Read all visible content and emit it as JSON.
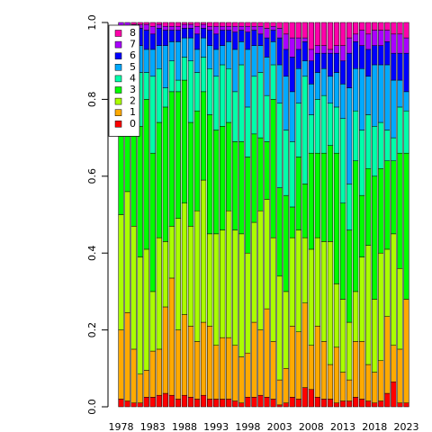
{
  "chart_data": {
    "type": "stacked_bar",
    "categories": [
      "1978",
      null,
      null,
      null,
      null,
      "1983",
      null,
      null,
      null,
      null,
      "1988",
      null,
      null,
      null,
      null,
      "1993",
      null,
      null,
      null,
      null,
      "1998",
      null,
      null,
      null,
      null,
      "2003",
      null,
      null,
      null,
      null,
      "2008",
      null,
      null,
      null,
      null,
      "2013",
      null,
      null,
      null,
      null,
      "2018",
      null,
      null,
      null,
      null,
      "2023"
    ],
    "ylim": [
      0,
      1
    ],
    "yticks": [
      {
        "value": 0,
        "label": "0.0"
      },
      {
        "value": 0.2,
        "label": "0.2"
      },
      {
        "value": 0.4,
        "label": "0.4"
      },
      {
        "value": 0.6,
        "label": "0.6"
      },
      {
        "value": 0.8,
        "label": "0.8"
      },
      {
        "value": 1,
        "label": "1.0"
      }
    ],
    "legend": "top-left",
    "series": [
      {
        "name": "0",
        "color": "#FF0000",
        "values": [
          0.02,
          0.015,
          0.01,
          0.01,
          0.025,
          0.025,
          0.03,
          0.035,
          0.03,
          0.02,
          0.03,
          0.025,
          0.02,
          0.03,
          0.02,
          0.02,
          0.02,
          0.02,
          0.015,
          0.01,
          0.025,
          0.025,
          0.03,
          0.025,
          0.02,
          0.005,
          0.01,
          0.025,
          0.02,
          0.05,
          0.045,
          0.025,
          0.02,
          0.02,
          0.01,
          0.015,
          0.015,
          0.025,
          0.02,
          0.015,
          0.01,
          0.015,
          0.035,
          0.065,
          0.01,
          0.01
        ]
      },
      {
        "name": "1",
        "color": "#FFAA00",
        "values": [
          0.18,
          0.23,
          0.14,
          0.075,
          0.07,
          0.12,
          0.12,
          0.225,
          0.305,
          0.18,
          0.21,
          0.185,
          0.15,
          0.19,
          0.19,
          0.14,
          0.16,
          0.16,
          0.145,
          0.12,
          0.115,
          0.195,
          0.17,
          0.23,
          0.15,
          0.065,
          0.09,
          0.185,
          0.175,
          0.22,
          0.115,
          0.185,
          0.15,
          0.09,
          0.145,
          0.075,
          0.055,
          0.145,
          0.15,
          0.095,
          0.08,
          0.105,
          0.2,
          0.095,
          0.14,
          0.27
        ]
      },
      {
        "name": "2",
        "color": "#AAFF00",
        "values": [
          0.3,
          0.315,
          0.32,
          0.305,
          0.315,
          0.155,
          0.29,
          0.17,
          0.135,
          0.29,
          0.29,
          0.26,
          0.34,
          0.37,
          0.24,
          0.29,
          0.28,
          0.33,
          0.3,
          0.32,
          0.26,
          0.26,
          0.31,
          0.285,
          0.27,
          0.27,
          0.2,
          0.23,
          0.265,
          0.17,
          0.25,
          0.23,
          0.26,
          0.32,
          0.165,
          0.19,
          0.15,
          0.13,
          0.22,
          0.31,
          0.19,
          0.28,
          0.175,
          0.29,
          0.21,
          0
        ]
      },
      {
        "name": "3",
        "color": "#00FF00",
        "values": [
          0.24,
          0.2,
          0.27,
          0.34,
          0.39,
          0.36,
          0.3,
          0.35,
          0.35,
          0.33,
          0.32,
          0.27,
          0.26,
          0.23,
          0.31,
          0.27,
          0.27,
          0.23,
          0.23,
          0.24,
          0.25,
          0.23,
          0.19,
          0.15,
          0.36,
          0.23,
          0.25,
          0.08,
          0.19,
          0.14,
          0.25,
          0.22,
          0.23,
          0.25,
          0.34,
          0.25,
          0.24,
          0.34,
          0.16,
          0.2,
          0.32,
          0.22,
          0.23,
          0.19,
          0.3,
          0.38
        ]
      },
      {
        "name": "4",
        "color": "#00FFAA",
        "values": [
          0.12,
          0.11,
          0.12,
          0.14,
          0.07,
          0.2,
          0.14,
          0.05,
          0.08,
          0.03,
          0.06,
          0.16,
          0.1,
          0.09,
          0.12,
          0.14,
          0.16,
          0.14,
          0.13,
          0.2,
          0.13,
          0.15,
          0.17,
          0.12,
          0.09,
          0.22,
          0.17,
          0.17,
          0.14,
          0.28,
          0.1,
          0.14,
          0.15,
          0.11,
          0.12,
          0.22,
          0.12,
          0.13,
          0.17,
          0.14,
          0.13,
          0.12,
          0.08,
          0.06,
          0.12,
          0.11
        ]
      },
      {
        "name": "5",
        "color": "#00AAFF",
        "values": [
          0.09,
          0.08,
          0.07,
          0.07,
          0.06,
          0.07,
          0.06,
          0.11,
          0.05,
          0.1,
          0.05,
          0.06,
          0.06,
          0.05,
          0.06,
          0.07,
          0.05,
          0.07,
          0.11,
          0.06,
          0.15,
          0.08,
          0.07,
          0.1,
          0.06,
          0.1,
          0.14,
          0.13,
          0.09,
          0.04,
          0.08,
          0.07,
          0.07,
          0.07,
          0.09,
          0.09,
          0.25,
          0.11,
          0.16,
          0.1,
          0.16,
          0.15,
          0.17,
          0.15,
          0.07,
          0.05
        ]
      },
      {
        "name": "6",
        "color": "#0000FF",
        "values": [
          0.04,
          0.04,
          0.055,
          0.045,
          0.05,
          0.04,
          0.045,
          0.04,
          0.03,
          0.03,
          0.025,
          0.025,
          0.04,
          0.025,
          0.04,
          0.04,
          0.04,
          0.03,
          0.045,
          0.03,
          0.045,
          0.04,
          0.03,
          0.05,
          0.03,
          0.07,
          0.07,
          0.09,
          0.05,
          0.05,
          0.06,
          0.05,
          0.04,
          0.06,
          0.05,
          0.06,
          0.09,
          0.07,
          0.06,
          0.07,
          0.05,
          0.05,
          0.06,
          0.07,
          0.07,
          0.1
        ]
      },
      {
        "name": "7",
        "color": "#AA00FF",
        "values": [
          0.01,
          0.01,
          0.01,
          0.01,
          0.015,
          0.02,
          0.01,
          0.01,
          0.01,
          0.01,
          0.01,
          0.01,
          0.02,
          0.01,
          0.01,
          0.02,
          0.01,
          0.01,
          0.015,
          0.01,
          0.015,
          0.01,
          0.02,
          0.025,
          0.01,
          0.025,
          0.04,
          0.05,
          0.03,
          0.01,
          0.03,
          0.02,
          0.02,
          0.01,
          0.02,
          0.04,
          0.04,
          0.02,
          0.04,
          0.04,
          0.04,
          0.04,
          0.03,
          0.05,
          0.05,
          0.04
        ]
      },
      {
        "name": "8",
        "color": "#FF00AA",
        "values": [
          0,
          0,
          0.005,
          0.005,
          0.005,
          0.01,
          0.005,
          0.01,
          0.01,
          0.01,
          0.005,
          0.005,
          0.01,
          0.005,
          0.01,
          0.01,
          0.01,
          0.01,
          0.01,
          0.01,
          0.01,
          0.01,
          0.01,
          0.015,
          0.01,
          0.015,
          0.03,
          0.04,
          0.04,
          0.04,
          0.07,
          0.06,
          0.06,
          0.07,
          0.06,
          0.06,
          0.04,
          0.03,
          0.02,
          0.03,
          0.02,
          0.02,
          0.02,
          0.03,
          0.03,
          0.04
        ]
      }
    ]
  }
}
